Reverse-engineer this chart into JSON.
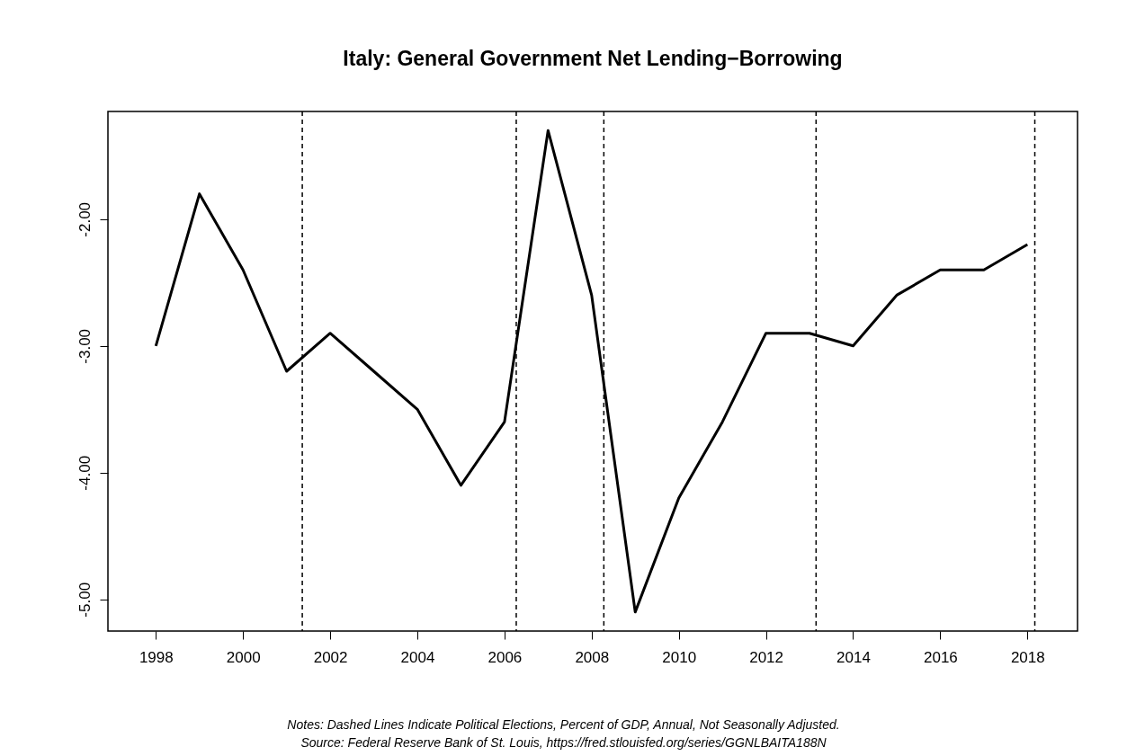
{
  "chart_data": {
    "type": "line",
    "title": "Italy: General Government Net Lending−Borrowing",
    "x": [
      1998,
      1999,
      2000,
      2001,
      2002,
      2003,
      2004,
      2005,
      2006,
      2007,
      2008,
      2009,
      2010,
      2011,
      2012,
      2013,
      2014,
      2015,
      2016,
      2017,
      2018
    ],
    "series": [
      {
        "color": "#000000",
        "values": [
          -3.0,
          -1.8,
          -2.4,
          -3.2,
          -2.9,
          -3.2,
          -3.5,
          -4.1,
          -3.6,
          -1.3,
          -2.6,
          -5.1,
          -4.2,
          -3.6,
          -2.9,
          -2.9,
          -3.0,
          -2.6,
          -2.4,
          -2.4,
          -2.2
        ]
      }
    ],
    "xlim": [
      1996.9,
      2019.15
    ],
    "xticks": [
      1998,
      2000,
      2002,
      2004,
      2006,
      2008,
      2010,
      2012,
      2014,
      2016,
      2018
    ],
    "ylim": [
      -5.25,
      -1.15
    ],
    "yticks": [
      {
        "value": -5,
        "label": "-5.00"
      },
      {
        "value": -4,
        "label": "-4.00"
      },
      {
        "value": -3,
        "label": "-3.00"
      },
      {
        "value": -2,
        "label": "-2.00"
      }
    ],
    "ref_lines": [
      {
        "axis": "x",
        "value": 2001.36,
        "color": "#000000",
        "line_style": "dashed"
      },
      {
        "axis": "x",
        "value": 2006.27,
        "color": "#000000",
        "line_style": "dashed"
      },
      {
        "axis": "x",
        "value": 2008.28,
        "color": "#000000",
        "line_style": "dashed"
      },
      {
        "axis": "x",
        "value": 2013.15,
        "color": "#000000",
        "line_style": "dashed"
      },
      {
        "axis": "x",
        "value": 2018.17,
        "color": "#000000",
        "line_style": "dashed"
      }
    ],
    "grid": false,
    "marker": "none",
    "line_style": "solid",
    "annotations": [
      "Notes: Dashed Lines Indicate Political Elections, Percent of GDP, Annual, Not Seasonally Adjusted.",
      "Source: Federal Reserve Bank of St. Louis, https://fred.stlouisfed.org/series/GGNLBAITA188N"
    ]
  }
}
